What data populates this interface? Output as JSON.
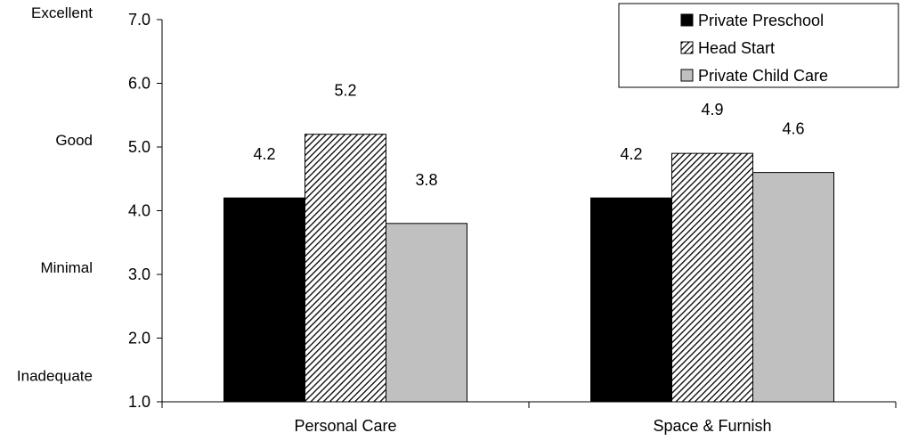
{
  "chart_data": {
    "type": "bar",
    "title": "",
    "xlabel": "",
    "ylabel": "",
    "ylim": [
      1.0,
      7.0
    ],
    "yticks": [
      "1.0",
      "2.0",
      "3.0",
      "4.0",
      "5.0",
      "6.0",
      "7.0"
    ],
    "rating_labels": [
      {
        "text": "Excellent",
        "y": 7.1
      },
      {
        "text": "Good",
        "y": 5.1
      },
      {
        "text": "Minimal",
        "y": 3.1
      },
      {
        "text": "Inadequate",
        "y": 1.4
      }
    ],
    "categories": [
      "Personal Care",
      "Space & Furnish"
    ],
    "series": [
      {
        "name": "Private Preschool",
        "values": [
          4.2,
          4.2
        ],
        "value_labels": [
          "4.2",
          "4.2"
        ],
        "fill": "#000000",
        "pattern": "solid"
      },
      {
        "name": "Head Start",
        "values": [
          5.2,
          4.9
        ],
        "value_labels": [
          "5.2",
          "4.9"
        ],
        "fill": "#ffffff",
        "pattern": "diagonal-hatch"
      },
      {
        "name": "Private Child Care",
        "values": [
          3.8,
          4.6
        ],
        "value_labels": [
          "3.8",
          "4.6"
        ],
        "fill": "#c0c0c0",
        "pattern": "solid"
      }
    ],
    "grid": false,
    "legend_position": "top-right"
  }
}
